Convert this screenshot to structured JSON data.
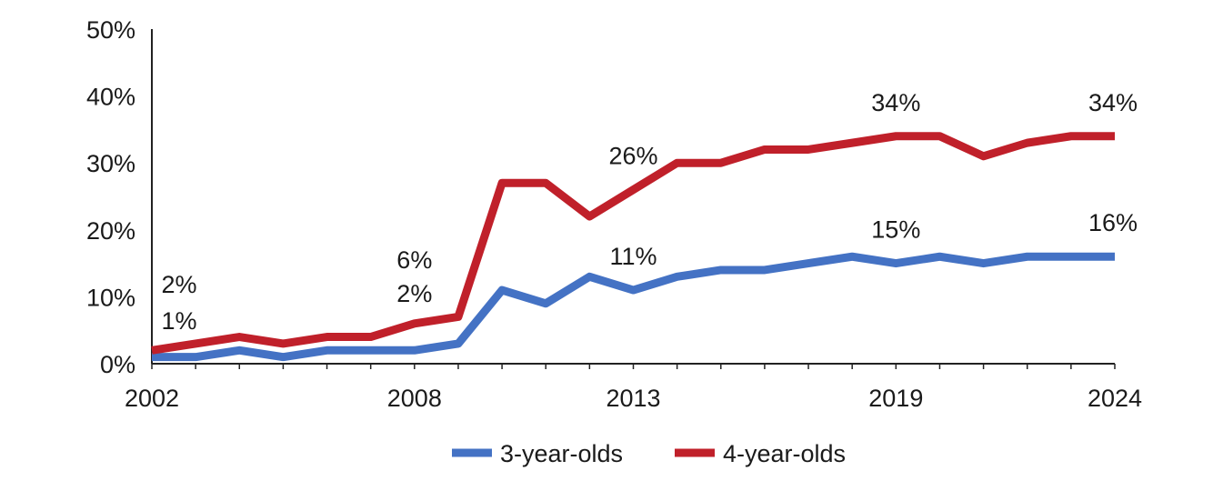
{
  "chart_data": {
    "type": "line",
    "title": "",
    "xlabel": "",
    "ylabel": "",
    "x": [
      2002,
      2003,
      2004,
      2005,
      2006,
      2007,
      2008,
      2009,
      2010,
      2011,
      2012,
      2013,
      2014,
      2015,
      2016,
      2017,
      2018,
      2019,
      2020,
      2021,
      2022,
      2023,
      2024
    ],
    "xlim": [
      2002,
      2024
    ],
    "ylim": [
      0,
      50
    ],
    "y_ticks": [
      "0%",
      "10%",
      "20%",
      "30%",
      "40%",
      "50%"
    ],
    "x_ticks": [
      "2002",
      "2008",
      "2013",
      "2019",
      "2024"
    ],
    "grid": false,
    "legend_position": "bottom",
    "series": [
      {
        "name": "3-year-olds",
        "color": "#4472c4",
        "values": [
          1,
          1,
          2,
          1,
          2,
          2,
          2,
          3,
          11,
          9,
          13,
          11,
          13,
          14,
          14,
          15,
          16,
          15,
          16,
          15,
          16,
          16,
          16
        ]
      },
      {
        "name": "4-year-olds",
        "color": "#c0202a",
        "values": [
          2,
          3,
          4,
          3,
          4,
          4,
          6,
          7,
          27,
          27,
          22,
          26,
          30,
          30,
          32,
          32,
          33,
          34,
          34,
          31,
          33,
          34,
          34
        ]
      }
    ],
    "annotations": [
      {
        "text": "2%",
        "x": 2002,
        "y": 2,
        "series": 1
      },
      {
        "text": "1%",
        "x": 2002,
        "y": 1,
        "series": 0
      },
      {
        "text": "6%",
        "x": 2008,
        "y": 6,
        "series": 1
      },
      {
        "text": "2%",
        "x": 2008,
        "y": 2,
        "series": 0
      },
      {
        "text": "26%",
        "x": 2013,
        "y": 26,
        "series": 1
      },
      {
        "text": "11%",
        "x": 2013,
        "y": 11,
        "series": 0
      },
      {
        "text": "34%",
        "x": 2019,
        "y": 34,
        "series": 1
      },
      {
        "text": "15%",
        "x": 2019,
        "y": 15,
        "series": 0
      },
      {
        "text": "34%",
        "x": 2024,
        "y": 34,
        "series": 1
      },
      {
        "text": "16%",
        "x": 2024,
        "y": 16,
        "series": 0
      }
    ]
  }
}
